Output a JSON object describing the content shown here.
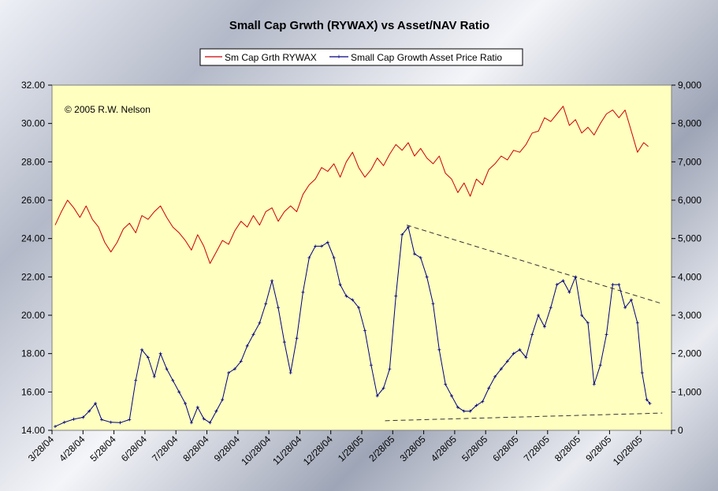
{
  "chart_data": {
    "type": "line",
    "title": "Small Cap Grwth (RYWAX) vs Asset/NAV Ratio",
    "annotation": "© 2005 R.W. Nelson",
    "legend": {
      "placement": "top-center",
      "items": [
        {
          "name": "Sm Cap Grth RYWAX",
          "color": "#cc0000"
        },
        {
          "name": "Small Cap Growth Asset Price Ratio",
          "color": "#000080"
        }
      ]
    },
    "x_ticks": [
      "3/28/04",
      "4/28/04",
      "5/28/04",
      "6/28/04",
      "7/28/04",
      "8/28/04",
      "9/28/04",
      "10/28/04",
      "11/28/04",
      "12/28/04",
      "1/28/05",
      "2/28/05",
      "3/28/05",
      "4/28/05",
      "5/28/05",
      "6/28/05",
      "7/28/05",
      "8/28/05",
      "9/28/05",
      "10/28/05"
    ],
    "y_left": {
      "min": 14,
      "max": 32,
      "ticks": [
        "14.00",
        "16.00",
        "18.00",
        "20.00",
        "22.00",
        "24.00",
        "26.00",
        "28.00",
        "30.00",
        "32.00"
      ]
    },
    "y_right": {
      "min": 0,
      "max": 9000,
      "ticks": [
        "0",
        "1,000",
        "2,000",
        "3,000",
        "4,000",
        "5,000",
        "6,000",
        "7,000",
        "8,000",
        "9,000"
      ]
    },
    "grid": false,
    "plot_background": "#ffffc0",
    "series": [
      {
        "name": "Sm Cap Grth RYWAX",
        "axis": "left",
        "color": "#cc0000",
        "points": [
          [
            0,
            24.7
          ],
          [
            0.2,
            25.4
          ],
          [
            0.4,
            26.0
          ],
          [
            0.6,
            25.6
          ],
          [
            0.8,
            25.1
          ],
          [
            1.0,
            25.7
          ],
          [
            1.2,
            25.0
          ],
          [
            1.4,
            24.6
          ],
          [
            1.6,
            23.8
          ],
          [
            1.8,
            23.3
          ],
          [
            2.0,
            23.8
          ],
          [
            2.2,
            24.5
          ],
          [
            2.4,
            24.8
          ],
          [
            2.6,
            24.3
          ],
          [
            2.8,
            25.2
          ],
          [
            3.0,
            25.0
          ],
          [
            3.2,
            25.4
          ],
          [
            3.4,
            25.7
          ],
          [
            3.6,
            25.1
          ],
          [
            3.8,
            24.6
          ],
          [
            4.0,
            24.3
          ],
          [
            4.2,
            23.9
          ],
          [
            4.4,
            23.4
          ],
          [
            4.6,
            24.2
          ],
          [
            4.8,
            23.6
          ],
          [
            5.0,
            22.7
          ],
          [
            5.2,
            23.3
          ],
          [
            5.4,
            23.9
          ],
          [
            5.6,
            23.7
          ],
          [
            5.8,
            24.4
          ],
          [
            6.0,
            24.9
          ],
          [
            6.2,
            24.6
          ],
          [
            6.4,
            25.2
          ],
          [
            6.6,
            24.7
          ],
          [
            6.8,
            25.4
          ],
          [
            7.0,
            25.6
          ],
          [
            7.2,
            24.9
          ],
          [
            7.4,
            25.4
          ],
          [
            7.6,
            25.7
          ],
          [
            7.8,
            25.4
          ],
          [
            8.0,
            26.3
          ],
          [
            8.2,
            26.8
          ],
          [
            8.4,
            27.1
          ],
          [
            8.6,
            27.7
          ],
          [
            8.8,
            27.5
          ],
          [
            9.0,
            27.9
          ],
          [
            9.2,
            27.2
          ],
          [
            9.4,
            28.0
          ],
          [
            9.6,
            28.5
          ],
          [
            9.8,
            27.7
          ],
          [
            10.0,
            27.2
          ],
          [
            10.2,
            27.6
          ],
          [
            10.4,
            28.2
          ],
          [
            10.6,
            27.8
          ],
          [
            10.8,
            28.4
          ],
          [
            11.0,
            28.9
          ],
          [
            11.2,
            28.6
          ],
          [
            11.4,
            29.0
          ],
          [
            11.6,
            28.3
          ],
          [
            11.8,
            28.7
          ],
          [
            12.0,
            28.2
          ],
          [
            12.2,
            27.9
          ],
          [
            12.4,
            28.3
          ],
          [
            12.6,
            27.4
          ],
          [
            12.8,
            27.1
          ],
          [
            13.0,
            26.4
          ],
          [
            13.2,
            26.9
          ],
          [
            13.4,
            26.2
          ],
          [
            13.6,
            27.1
          ],
          [
            13.8,
            26.8
          ],
          [
            14.0,
            27.6
          ],
          [
            14.2,
            27.9
          ],
          [
            14.4,
            28.3
          ],
          [
            14.6,
            28.1
          ],
          [
            14.8,
            28.6
          ],
          [
            15.0,
            28.5
          ],
          [
            15.2,
            28.9
          ],
          [
            15.4,
            29.5
          ],
          [
            15.6,
            29.6
          ],
          [
            15.8,
            30.3
          ],
          [
            16.0,
            30.1
          ],
          [
            16.2,
            30.5
          ],
          [
            16.4,
            30.9
          ],
          [
            16.6,
            29.9
          ],
          [
            16.8,
            30.2
          ],
          [
            17.0,
            29.5
          ],
          [
            17.2,
            29.8
          ],
          [
            17.4,
            29.4
          ],
          [
            17.6,
            30.0
          ],
          [
            17.8,
            30.5
          ],
          [
            18.0,
            30.7
          ],
          [
            18.2,
            30.3
          ],
          [
            18.4,
            30.7
          ],
          [
            18.6,
            29.6
          ],
          [
            18.8,
            28.5
          ],
          [
            19.0,
            29.0
          ],
          [
            19.15,
            28.8
          ]
        ]
      },
      {
        "name": "Small Cap Growth Asset Price Ratio",
        "axis": "right",
        "color": "#000080",
        "points": [
          [
            0,
            100
          ],
          [
            0.3,
            210
          ],
          [
            0.6,
            290
          ],
          [
            0.9,
            340
          ],
          [
            1.1,
            500
          ],
          [
            1.3,
            700
          ],
          [
            1.5,
            280
          ],
          [
            1.8,
            210
          ],
          [
            2.1,
            200
          ],
          [
            2.4,
            280
          ],
          [
            2.6,
            1300
          ],
          [
            2.8,
            2100
          ],
          [
            3.0,
            1900
          ],
          [
            3.2,
            1400
          ],
          [
            3.4,
            2000
          ],
          [
            3.6,
            1600
          ],
          [
            3.8,
            1300
          ],
          [
            4.0,
            1000
          ],
          [
            4.2,
            700
          ],
          [
            4.4,
            200
          ],
          [
            4.6,
            600
          ],
          [
            4.8,
            300
          ],
          [
            5.0,
            200
          ],
          [
            5.2,
            500
          ],
          [
            5.4,
            800
          ],
          [
            5.6,
            1500
          ],
          [
            5.8,
            1600
          ],
          [
            6.0,
            1800
          ],
          [
            6.2,
            2200
          ],
          [
            6.4,
            2500
          ],
          [
            6.6,
            2800
          ],
          [
            6.8,
            3300
          ],
          [
            7.0,
            3900
          ],
          [
            7.2,
            3200
          ],
          [
            7.4,
            2300
          ],
          [
            7.6,
            1500
          ],
          [
            7.8,
            2400
          ],
          [
            8.0,
            3600
          ],
          [
            8.2,
            4500
          ],
          [
            8.4,
            4800
          ],
          [
            8.6,
            4800
          ],
          [
            8.8,
            4900
          ],
          [
            9.0,
            4500
          ],
          [
            9.2,
            3800
          ],
          [
            9.4,
            3500
          ],
          [
            9.6,
            3400
          ],
          [
            9.8,
            3200
          ],
          [
            10.0,
            2600
          ],
          [
            10.2,
            1700
          ],
          [
            10.4,
            900
          ],
          [
            10.6,
            1100
          ],
          [
            10.8,
            1600
          ],
          [
            11.0,
            3500
          ],
          [
            11.2,
            5100
          ],
          [
            11.4,
            5300
          ],
          [
            11.6,
            4600
          ],
          [
            11.8,
            4500
          ],
          [
            12.0,
            4000
          ],
          [
            12.2,
            3300
          ],
          [
            12.4,
            2100
          ],
          [
            12.6,
            1200
          ],
          [
            12.8,
            900
          ],
          [
            13.0,
            600
          ],
          [
            13.2,
            500
          ],
          [
            13.4,
            500
          ],
          [
            13.6,
            650
          ],
          [
            13.8,
            750
          ],
          [
            14.0,
            1100
          ],
          [
            14.2,
            1400
          ],
          [
            14.4,
            1600
          ],
          [
            14.6,
            1800
          ],
          [
            14.8,
            2000
          ],
          [
            15.0,
            2100
          ],
          [
            15.2,
            1900
          ],
          [
            15.4,
            2500
          ],
          [
            15.6,
            3000
          ],
          [
            15.8,
            2700
          ],
          [
            16.0,
            3200
          ],
          [
            16.2,
            3800
          ],
          [
            16.4,
            3900
          ],
          [
            16.6,
            3600
          ],
          [
            16.8,
            4000
          ],
          [
            17.0,
            3000
          ],
          [
            17.2,
            2800
          ],
          [
            17.4,
            1200
          ],
          [
            17.6,
            1700
          ],
          [
            17.8,
            2500
          ],
          [
            18.0,
            3800
          ],
          [
            18.2,
            3800
          ],
          [
            18.4,
            3200
          ],
          [
            18.6,
            3400
          ],
          [
            18.8,
            2800
          ],
          [
            18.95,
            1500
          ],
          [
            19.1,
            800
          ],
          [
            19.2,
            700
          ]
        ]
      }
    ],
    "trendlines": [
      {
        "axis": "right",
        "style": "dashed",
        "from": [
          10.65,
          250
        ],
        "to": [
          19.6,
          450
        ]
      },
      {
        "axis": "right",
        "style": "dashed",
        "from": [
          11.35,
          5350
        ],
        "to": [
          19.6,
          3300
        ]
      }
    ]
  }
}
